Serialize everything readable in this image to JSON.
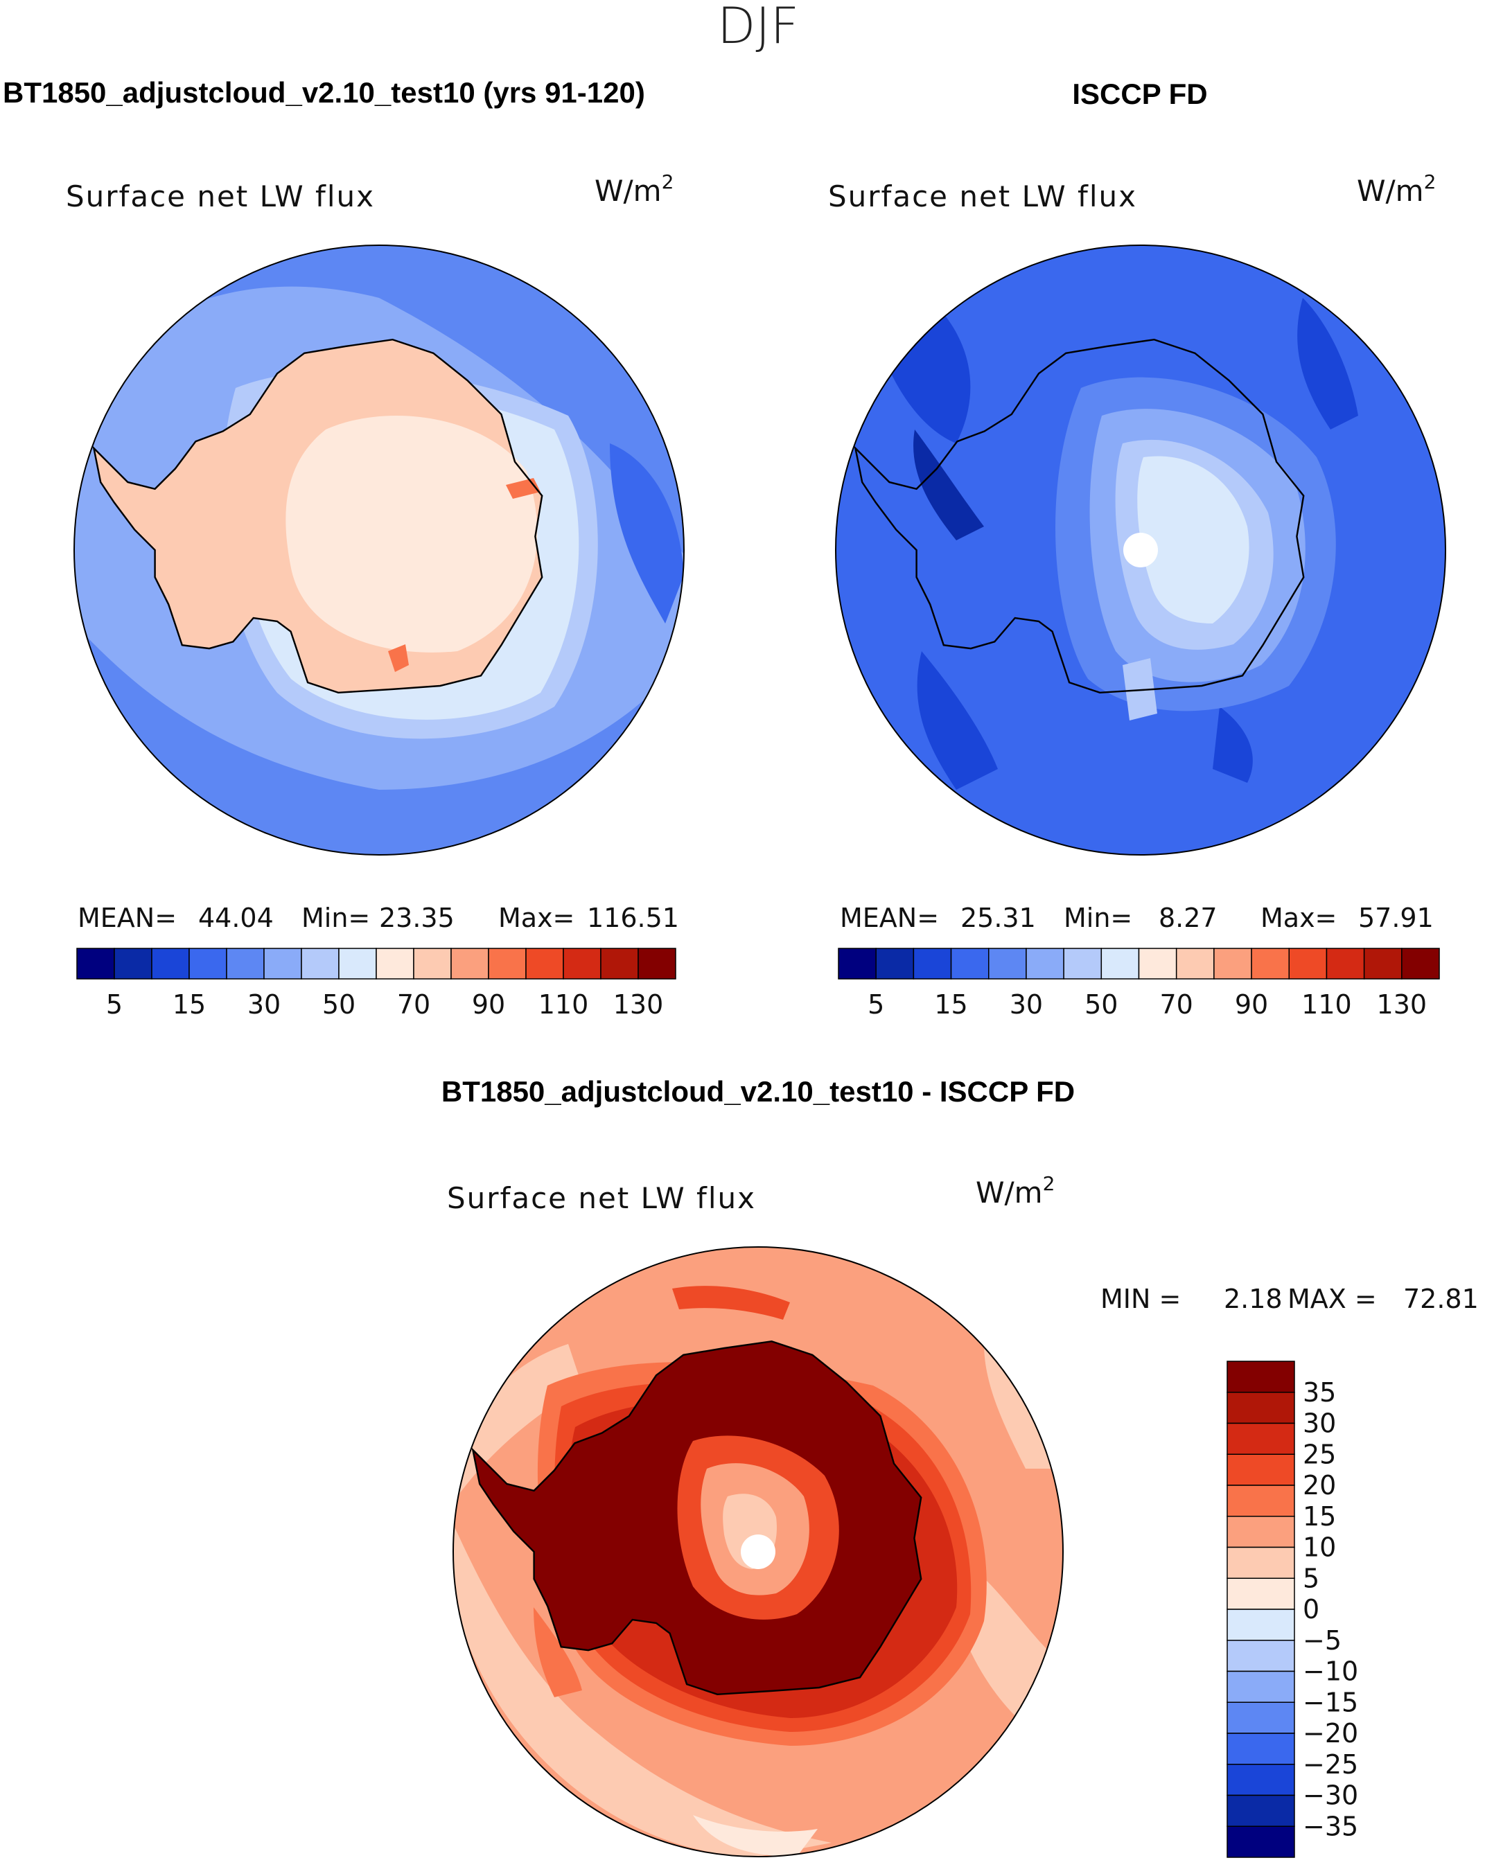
{
  "season": "DJF",
  "colors": {
    "scale": [
      "#00007f",
      "#0a2aa6",
      "#1a45d8",
      "#3a68ee",
      "#5d87f3",
      "#8aabf8",
      "#b4cafa",
      "#d9e9fc",
      "#fee9dc",
      "#fdcbb2",
      "#fba07e",
      "#f9734a",
      "#ee4a26",
      "#d42a14",
      "#b01708",
      "#830000"
    ],
    "diff_scale": [
      "#830000",
      "#b01708",
      "#d42a14",
      "#ee4a26",
      "#f9734a",
      "#fba07e",
      "#fdcbb2",
      "#fee9dc",
      "#d9e9fc",
      "#b4cafa",
      "#8aabf8",
      "#5d87f3",
      "#3a68ee",
      "#1a45d8",
      "#0a2aa6",
      "#00007f"
    ]
  },
  "panels": [
    {
      "id": "model",
      "heading": "BT1850_adjustcloud_v2.10_test10 (yrs 91-120)",
      "variable": "Surface net LW flux",
      "units_base": "W/m",
      "units_exp": "2",
      "stats": {
        "mean_label": "MEAN=",
        "mean": "44.04",
        "min_label": "Min=",
        "min": "23.35",
        "max_label": "Max=",
        "max": "116.51"
      },
      "colorbar_ticks": [
        "5",
        "15",
        "30",
        "50",
        "70",
        "90",
        "110",
        "130"
      ]
    },
    {
      "id": "obs",
      "heading": "ISCCP FD",
      "variable": "Surface net LW flux",
      "units_base": "W/m",
      "units_exp": "2",
      "stats": {
        "mean_label": "MEAN=",
        "mean": "25.31",
        "min_label": "Min=",
        "min": "8.27",
        "max_label": "Max=",
        "max": "57.91"
      },
      "colorbar_ticks": [
        "5",
        "15",
        "30",
        "50",
        "70",
        "90",
        "110",
        "130"
      ]
    },
    {
      "id": "diff",
      "heading": "BT1850_adjustcloud_v2.10_test10 - ISCCP FD",
      "variable": "Surface net LW flux",
      "units_base": "W/m",
      "units_exp": "2",
      "stats": {
        "min_label": "MIN =",
        "min": "2.18",
        "max_label": "MAX =",
        "max": "72.81"
      },
      "colorbar_ticks": [
        "35",
        "30",
        "25",
        "20",
        "15",
        "10",
        "5",
        "0",
        "−5",
        "−10",
        "−15",
        "−20",
        "−25",
        "−30",
        "−35"
      ]
    }
  ]
}
